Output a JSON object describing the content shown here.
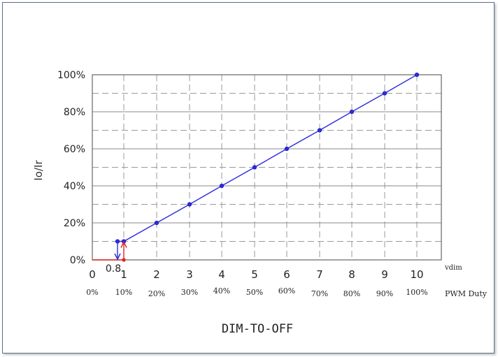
{
  "chart_data": {
    "type": "line",
    "title": "DIM-TO-OFF",
    "ylabel": "Io/Ir",
    "xlabel": "vdim",
    "secondary_xlabel": "PWM Duty",
    "xlim": [
      0,
      10
    ],
    "ylim": [
      0,
      100
    ],
    "x_ticks": [
      0,
      1,
      2,
      3,
      4,
      5,
      6,
      7,
      8,
      9,
      10
    ],
    "x_tick_labels": [
      "0",
      "1",
      "2",
      "3",
      "4",
      "5",
      "6",
      "7",
      "8",
      "9",
      "10"
    ],
    "duty_tick_labels": [
      "0%",
      "10%",
      "20%",
      "30%",
      "40%",
      "50%",
      "60%",
      "70%",
      "80%",
      "90%",
      "100%"
    ],
    "y_ticks": [
      0,
      20,
      40,
      60,
      80,
      100
    ],
    "y_tick_labels": [
      "0%",
      "20%",
      "40%",
      "60%",
      "80%",
      "100%"
    ],
    "grid": true,
    "series": [
      {
        "color": "#2b2bdf",
        "x": [
          0.8,
          1,
          2,
          3,
          4,
          5,
          6,
          7,
          8,
          9,
          10
        ],
        "y": [
          10,
          10,
          20,
          30,
          40,
          50,
          60,
          70,
          80,
          90,
          100
        ]
      }
    ],
    "off_segment": {
      "color": "#e02020",
      "x": [
        0,
        1
      ],
      "y": [
        0,
        0
      ]
    },
    "annotations": [
      {
        "text": "0.8",
        "x": 0.8,
        "y": 0
      },
      {
        "type": "arrow-down",
        "x": 0.8,
        "y_from": 10,
        "y_to": 0,
        "color": "#2b2bdf"
      },
      {
        "type": "arrow-up",
        "x": 1,
        "y_from": 0,
        "y_to": 10,
        "color": "#e02020"
      }
    ]
  }
}
